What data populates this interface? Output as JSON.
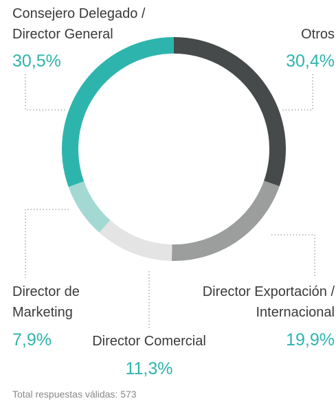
{
  "chart_data": {
    "type": "pie",
    "donut": true,
    "categories": [
      "Otros",
      "Director Exportación /\nInternacional",
      "Director Comercial",
      "Director de\nMarketing",
      "Consejero Delegado /\nDirector General"
    ],
    "values": [
      30.4,
      19.9,
      11.3,
      7.9,
      30.5
    ],
    "value_labels": [
      "30,4%",
      "19,9%",
      "11,3%",
      "7,9%",
      "30,5%"
    ],
    "colors": [
      "#474a4a",
      "#9c9e9d",
      "#e3e4e3",
      "#a3d9d2",
      "#2db5ad"
    ],
    "note": "Total respuestas válidas: 573"
  }
}
